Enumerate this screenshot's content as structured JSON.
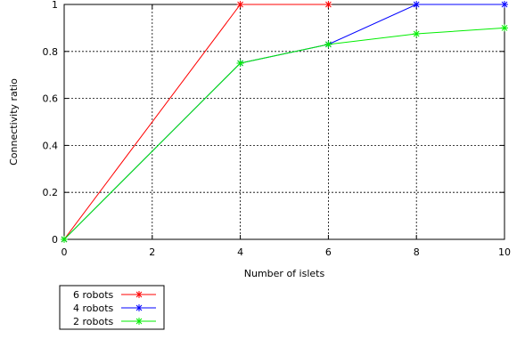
{
  "chart_data": {
    "type": "line",
    "title": "",
    "xlabel": "Number of islets",
    "ylabel": "Connectivity ratio",
    "xlim": [
      0,
      10
    ],
    "ylim": [
      0,
      1
    ],
    "xticks": [
      0,
      2,
      4,
      6,
      8,
      10
    ],
    "yticks": [
      0,
      0.2,
      0.4,
      0.6,
      0.8,
      1
    ],
    "xtick_labels": [
      "0",
      "2",
      "4",
      "6",
      "8",
      "10"
    ],
    "ytick_labels": [
      "0",
      "0.2",
      "0.4",
      "0.6",
      "0.8",
      "1"
    ],
    "grid": true,
    "grid_style": "dashed",
    "legend_position": "bottom-left, outside the plot",
    "marker": "asterisk",
    "series": [
      {
        "name": "6 robots",
        "color": "#ff0000",
        "x": [
          0,
          4,
          6
        ],
        "y": [
          0,
          1,
          1
        ]
      },
      {
        "name": "4 robots",
        "color": "#0000ff",
        "x": [
          0,
          4,
          6,
          8,
          10
        ],
        "y": [
          0,
          0.75,
          0.83,
          1,
          1
        ]
      },
      {
        "name": "2 robots",
        "color": "#00ee00",
        "x": [
          0,
          4,
          6,
          8,
          10
        ],
        "y": [
          0,
          0.75,
          0.83,
          0.875,
          0.9
        ]
      }
    ]
  }
}
